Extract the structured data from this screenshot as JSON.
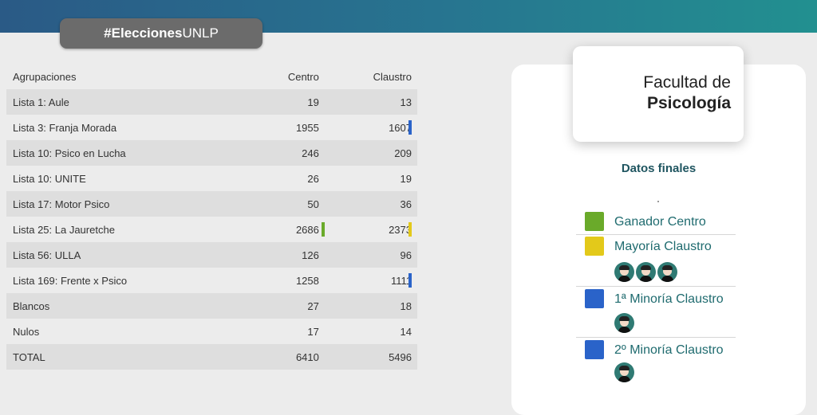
{
  "header": {
    "tag_bold": "#Elecciones",
    "tag_rest": "UNLP"
  },
  "table": {
    "headers": [
      "Agrupaciones",
      "Centro",
      "Claustro"
    ],
    "rows": [
      {
        "name": "Lista 1: Aule",
        "centro": "19",
        "claustro": "13"
      },
      {
        "name": "Lista 3: Franja Morada",
        "centro": "1955",
        "claustro": "1607"
      },
      {
        "name": "Lista 10: Psico en Lucha",
        "centro": "246",
        "claustro": "209"
      },
      {
        "name": "Lista 10: UNITE",
        "centro": "26",
        "claustro": "19"
      },
      {
        "name": "Lista 17: Motor Psico",
        "centro": "50",
        "claustro": "36"
      },
      {
        "name": "Lista 25: La Jauretche",
        "centro": "2686",
        "claustro": "2373"
      },
      {
        "name": "Lista 56: ULLA",
        "centro": "126",
        "claustro": "96"
      },
      {
        "name": "Lista 169: Frente x Psico",
        "centro": "1258",
        "claustro": "1111"
      },
      {
        "name": "Blancos",
        "centro": "27",
        "claustro": "18"
      },
      {
        "name": "Nulos",
        "centro": "17",
        "claustro": "14"
      },
      {
        "name": "TOTAL",
        "centro": "6410",
        "claustro": "5496"
      }
    ]
  },
  "panel": {
    "facultad_line1": "Facultad de",
    "facultad_line2": "Psicología",
    "datos_title": "Datos finales",
    "legend": [
      {
        "label": "Ganador Centro",
        "color": "#6aaa2a",
        "avatars": 0
      },
      {
        "label": "Mayoría Claustro",
        "color": "#e3c91a",
        "avatars": 3
      },
      {
        "label": "1ª Minoría Claustro",
        "color": "#2a63c9",
        "avatars": 1
      },
      {
        "label": "2º Minoría Claustro",
        "color": "#2a63c9",
        "avatars": 1
      }
    ]
  },
  "colors": {
    "green": "#6aaa2a",
    "yellow": "#e3c91a",
    "blue": "#2a63c9",
    "teal_text": "#1f6b6f"
  }
}
